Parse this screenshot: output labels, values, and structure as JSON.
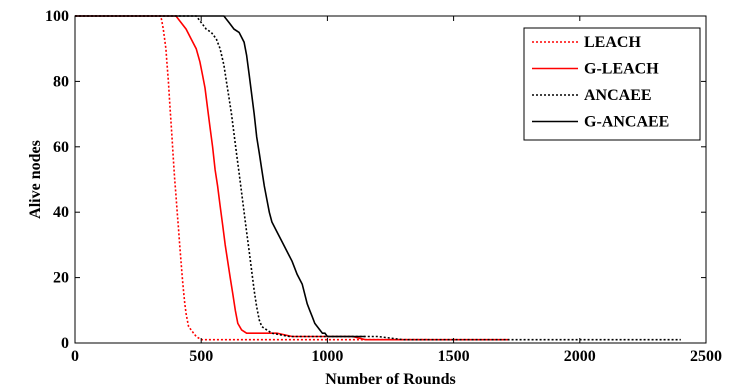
{
  "chart_data": {
    "type": "line",
    "xlabel": "Number of Rounds",
    "ylabel": "Alive nodes",
    "xlim": [
      0,
      2500
    ],
    "ylim": [
      0,
      100
    ],
    "xticks": [
      0,
      500,
      1000,
      1500,
      2000,
      2500
    ],
    "yticks": [
      0,
      20,
      40,
      60,
      80,
      100
    ],
    "grid": false,
    "legend_position": "top-right",
    "series": [
      {
        "name": "LEACH",
        "color": "#ff0000",
        "dash": "dotted",
        "x": [
          0,
          340,
          345,
          350,
          355,
          360,
          365,
          370,
          375,
          380,
          385,
          390,
          395,
          400,
          405,
          410,
          415,
          420,
          425,
          430,
          435,
          440,
          445,
          450,
          460,
          470,
          480,
          500,
          520,
          1400
        ],
        "y": [
          100,
          100,
          98,
          96,
          93,
          90,
          85,
          80,
          74,
          68,
          62,
          56,
          50,
          45,
          40,
          35,
          30,
          25,
          20,
          16,
          12,
          9,
          7,
          5,
          4,
          3,
          2,
          1,
          1,
          1
        ]
      },
      {
        "name": "G-LEACH",
        "color": "#ff0000",
        "dash": "solid",
        "x": [
          0,
          400,
          420,
          440,
          460,
          480,
          495,
          505,
          515,
          525,
          535,
          545,
          555,
          565,
          575,
          585,
          595,
          605,
          615,
          625,
          635,
          645,
          660,
          680,
          720,
          800,
          860,
          1000,
          1100,
          1150,
          1720
        ],
        "y": [
          100,
          100,
          98,
          96,
          93,
          90,
          86,
          82,
          78,
          72,
          66,
          60,
          53,
          48,
          42,
          36,
          30,
          25,
          20,
          15,
          10,
          6,
          4,
          3,
          3,
          3,
          2,
          2,
          2,
          1,
          1
        ]
      },
      {
        "name": "ANCAEE",
        "color": "#000000",
        "dash": "dotted",
        "x": [
          0,
          480,
          500,
          520,
          540,
          560,
          575,
          590,
          600,
          610,
          620,
          630,
          640,
          650,
          660,
          670,
          680,
          690,
          700,
          710,
          720,
          730,
          740,
          760,
          780,
          850,
          1000,
          1100,
          1200,
          1300,
          2400
        ],
        "y": [
          100,
          100,
          98,
          96,
          95,
          93,
          90,
          85,
          80,
          75,
          70,
          64,
          58,
          52,
          46,
          40,
          34,
          28,
          22,
          16,
          11,
          7,
          5,
          4,
          3,
          2,
          2,
          2,
          2,
          1,
          1
        ]
      },
      {
        "name": "G-ANCAEE",
        "color": "#000000",
        "dash": "solid",
        "x": [
          0,
          590,
          610,
          630,
          650,
          670,
          680,
          690,
          700,
          710,
          720,
          730,
          740,
          750,
          760,
          770,
          780,
          800,
          820,
          840,
          860,
          880,
          900,
          910,
          920,
          930,
          940,
          950,
          960,
          970,
          980,
          990,
          1000,
          1050,
          1100,
          1150
        ],
        "y": [
          100,
          100,
          98,
          96,
          95,
          92,
          88,
          82,
          76,
          70,
          63,
          58,
          53,
          48,
          44,
          40,
          37,
          34,
          31,
          28,
          25,
          21,
          18,
          15,
          12,
          10,
          8,
          6,
          5,
          4,
          3,
          3,
          2,
          2,
          2,
          2
        ]
      }
    ]
  }
}
